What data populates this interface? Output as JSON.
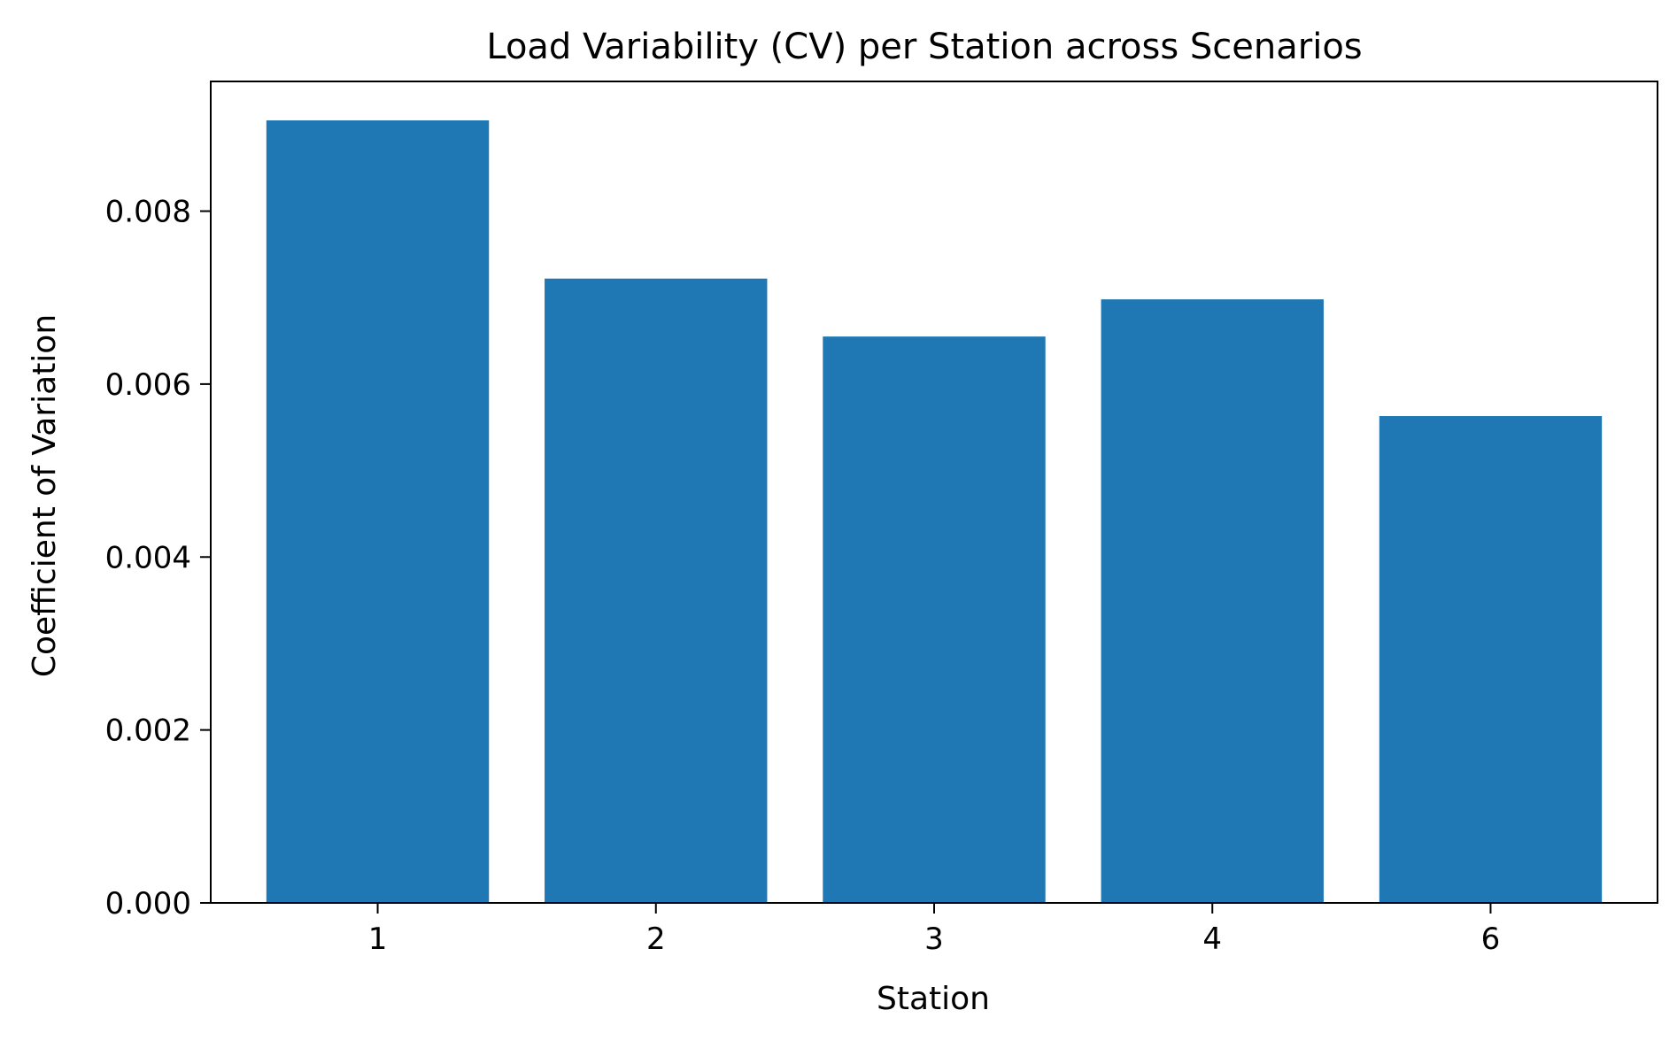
{
  "chart_data": {
    "type": "bar",
    "title": "Load Variability (CV) per Station across Scenarios",
    "xlabel": "Station",
    "ylabel": "Coefficient of Variation",
    "categories": [
      "1",
      "2",
      "3",
      "4",
      "6"
    ],
    "values": [
      0.00905,
      0.00722,
      0.00655,
      0.00698,
      0.00563
    ],
    "ylim": [
      0,
      0.0095
    ],
    "yticks": [
      "0.000",
      "0.002",
      "0.004",
      "0.006",
      "0.008"
    ],
    "ytick_values": [
      0,
      0.002,
      0.004,
      0.006,
      0.008
    ],
    "bar_color": "#1f77b4",
    "grid": false,
    "legend": "none"
  }
}
